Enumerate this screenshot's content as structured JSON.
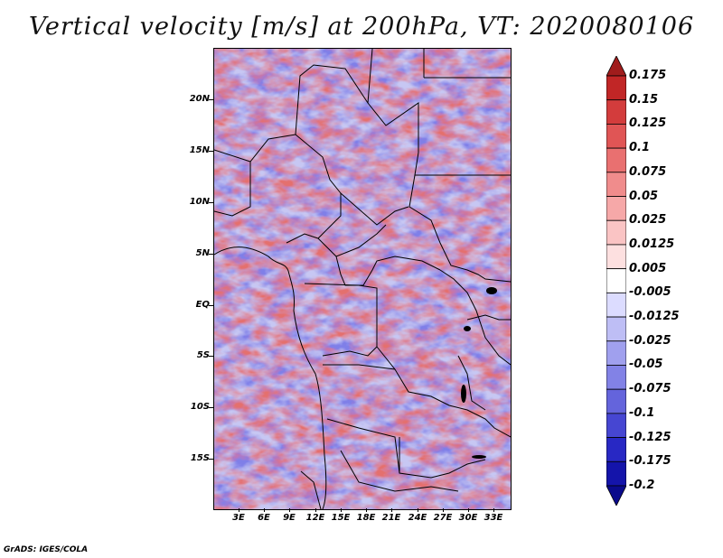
{
  "title": "Vertical velocity [m/s] at 200hPa, VT: 2020080106",
  "footer": "GrADS: IGES/COLA",
  "map": {
    "lat_labels": [
      "20N",
      "15N",
      "10N",
      "5N",
      "EQ",
      "5S",
      "10S",
      "15S"
    ],
    "lon_labels": [
      "3E",
      "6E",
      "9E",
      "12E",
      "15E",
      "18E",
      "21E",
      "24E",
      "27E",
      "30E",
      "33E"
    ]
  },
  "colorbar": {
    "levels": [
      "0.175",
      "0.15",
      "0.125",
      "0.1",
      "0.075",
      "0.05",
      "0.025",
      "0.0125",
      "0.005",
      "-0.005",
      "-0.0125",
      "-0.025",
      "-0.05",
      "-0.075",
      "-0.1",
      "-0.125",
      "-0.175",
      "-0.2"
    ],
    "colors": [
      "#a01c1c",
      "#c12626",
      "#d33c3c",
      "#e05555",
      "#e97070",
      "#f08c8c",
      "#f6a8a8",
      "#fac4c4",
      "#fde0e0",
      "#ffffff",
      "#dcdcff",
      "#bebef5",
      "#a0a0ee",
      "#8282e6",
      "#6464dc",
      "#4646d2",
      "#2828c4",
      "#1414aa",
      "#0a0a8c"
    ]
  }
}
